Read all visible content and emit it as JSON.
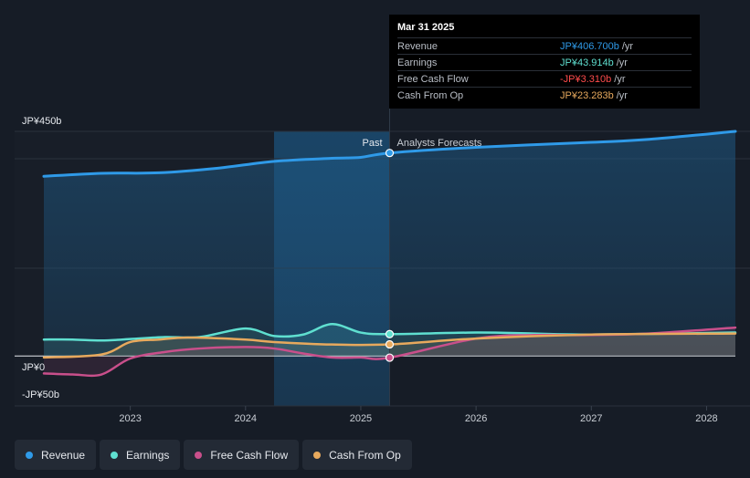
{
  "chart_data": {
    "type": "line",
    "x_domain": [
      2022.25,
      2028.25
    ],
    "ylim": [
      -100,
      450
    ],
    "y_tick_labels": [
      {
        "value": 450,
        "label": "JP¥450b"
      },
      {
        "value": 0,
        "label": "JP¥0"
      },
      {
        "value": -50,
        "label": "-JP¥50b"
      }
    ],
    "x_tick_labels": [
      {
        "value": 2023,
        "label": "2023"
      },
      {
        "value": 2024,
        "label": "2024"
      },
      {
        "value": 2025,
        "label": "2025"
      },
      {
        "value": 2026,
        "label": "2026"
      },
      {
        "value": 2027,
        "label": "2027"
      },
      {
        "value": 2028,
        "label": "2028"
      }
    ],
    "divider_x": 2025.25,
    "past_label": "Past",
    "forecast_label": "Analysts Forecasts",
    "series": [
      {
        "name": "Revenue",
        "color": "#2f9ae8",
        "points": [
          [
            2022.25,
            360
          ],
          [
            2022.75,
            366
          ],
          [
            2023.25,
            367
          ],
          [
            2023.75,
            376
          ],
          [
            2024.25,
            390
          ],
          [
            2024.75,
            396
          ],
          [
            2025.0,
            398
          ],
          [
            2025.25,
            406.7
          ],
          [
            2026.0,
            418
          ],
          [
            2027.0,
            428
          ],
          [
            2027.5,
            434
          ],
          [
            2028.25,
            450
          ]
        ]
      },
      {
        "name": "Earnings",
        "color": "#5fdfd0",
        "points": [
          [
            2022.25,
            33
          ],
          [
            2022.5,
            33
          ],
          [
            2022.75,
            31
          ],
          [
            2023.0,
            34
          ],
          [
            2023.3,
            38
          ],
          [
            2023.6,
            38
          ],
          [
            2024.0,
            55
          ],
          [
            2024.25,
            40
          ],
          [
            2024.5,
            43
          ],
          [
            2024.75,
            64
          ],
          [
            2025.0,
            47
          ],
          [
            2025.25,
            43.914
          ],
          [
            2026.0,
            47
          ],
          [
            2026.5,
            45
          ],
          [
            2027.0,
            43
          ],
          [
            2028.25,
            47
          ]
        ]
      },
      {
        "name": "Free Cash Flow",
        "color": "#c94f8b",
        "points": [
          [
            2022.25,
            -35
          ],
          [
            2022.5,
            -37
          ],
          [
            2022.75,
            -37
          ],
          [
            2023.0,
            -5
          ],
          [
            2023.3,
            8
          ],
          [
            2023.6,
            15
          ],
          [
            2024.0,
            18
          ],
          [
            2024.25,
            15
          ],
          [
            2024.5,
            5
          ],
          [
            2024.75,
            -3
          ],
          [
            2025.0,
            -3
          ],
          [
            2025.25,
            -3.31
          ],
          [
            2026.0,
            35
          ],
          [
            2026.5,
            42
          ],
          [
            2027.0,
            42
          ],
          [
            2027.5,
            45
          ],
          [
            2028.25,
            57
          ]
        ]
      },
      {
        "name": "Cash From Op",
        "color": "#e7a95d",
        "points": [
          [
            2022.25,
            -3
          ],
          [
            2022.75,
            3
          ],
          [
            2023.0,
            28
          ],
          [
            2023.25,
            33
          ],
          [
            2023.5,
            37
          ],
          [
            2024.0,
            33
          ],
          [
            2024.25,
            28
          ],
          [
            2024.75,
            23
          ],
          [
            2025.25,
            23.283
          ],
          [
            2026.0,
            35
          ],
          [
            2027.0,
            43
          ],
          [
            2028.25,
            45
          ]
        ]
      }
    ]
  },
  "tooltip": {
    "date": "Mar 31 2025",
    "rows": [
      {
        "label": "Revenue",
        "value": "JP¥406.700b",
        "unit": "/yr",
        "color": "#2f9ae8"
      },
      {
        "label": "Earnings",
        "value": "JP¥43.914b",
        "unit": "/yr",
        "color": "#5fdfd0"
      },
      {
        "label": "Free Cash Flow",
        "value": "-JP¥3.310b",
        "unit": "/yr",
        "color": "#ff4b4b"
      },
      {
        "label": "Cash From Op",
        "value": "JP¥23.283b",
        "unit": "/yr",
        "color": "#e7a95d"
      }
    ]
  },
  "legend": [
    {
      "label": "Revenue",
      "color": "#2f9ae8"
    },
    {
      "label": "Earnings",
      "color": "#5fdfd0"
    },
    {
      "label": "Free Cash Flow",
      "color": "#c94f8b"
    },
    {
      "label": "Cash From Op",
      "color": "#e7a95d"
    }
  ]
}
